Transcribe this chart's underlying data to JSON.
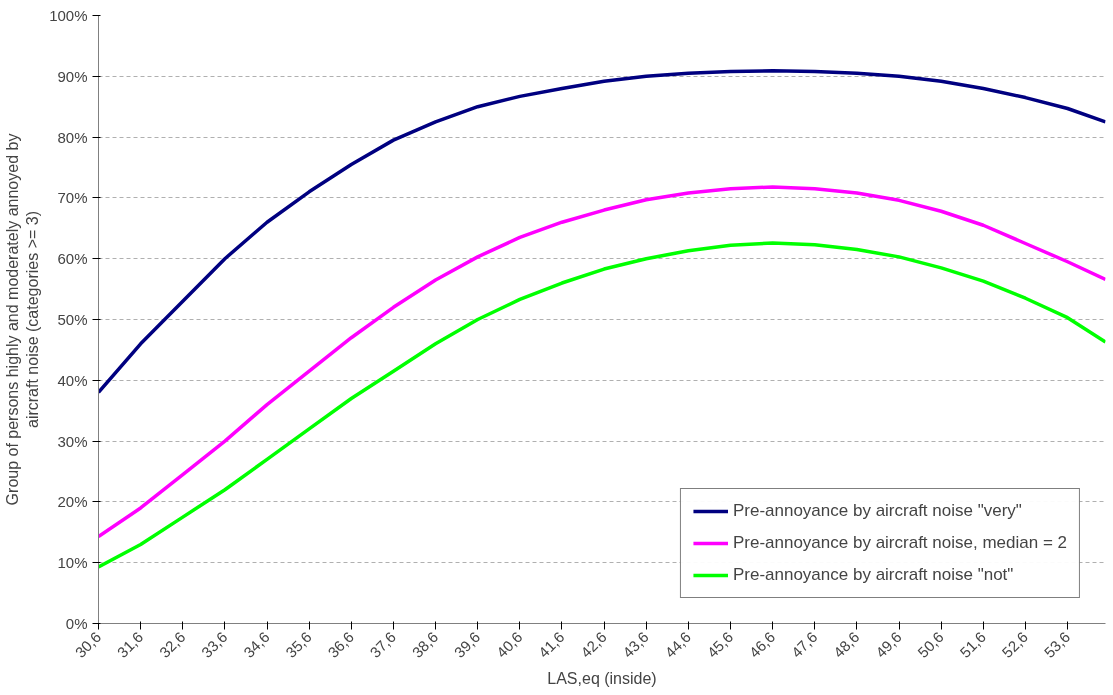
{
  "chart_data": {
    "type": "line",
    "xlabel": "LAS,eq (inside)",
    "ylabel": "Group of persons highly and moderately annoyed by\naircraft noise (categories >= 3)",
    "x": [
      30.6,
      31.6,
      32.6,
      33.6,
      34.6,
      35.6,
      36.6,
      37.6,
      38.6,
      39.6,
      40.6,
      41.6,
      42.6,
      43.6,
      44.6,
      45.6,
      46.6,
      47.6,
      48.6,
      49.6,
      50.6,
      51.6,
      52.6,
      53.6,
      54.5
    ],
    "series": [
      {
        "name": "Pre-annoyance by aircraft noise \"very\"",
        "color": "#000080",
        "values": [
          38,
          46,
          53,
          60,
          66,
          71,
          75.5,
          79.5,
          82.5,
          85,
          86.7,
          88,
          89.2,
          90,
          90.5,
          90.8,
          90.9,
          90.8,
          90.5,
          90,
          89.2,
          88,
          86.5,
          84.7,
          82.5
        ]
      },
      {
        "name": "Pre-annoyance by aircraft noise, median = 2",
        "color": "#ff00ff",
        "values": [
          14.3,
          19,
          24.5,
          30,
          36,
          41.5,
          47,
          52,
          56.5,
          60.3,
          63.5,
          66,
          68,
          69.7,
          70.8,
          71.5,
          71.8,
          71.5,
          70.8,
          69.6,
          67.8,
          65.5,
          62.5,
          59.5,
          56.6
        ]
      },
      {
        "name": "Pre-annoyance by aircraft noise \"not\"",
        "color": "#00ff00",
        "values": [
          9.3,
          13,
          17.5,
          22,
          27,
          32,
          37,
          41.5,
          46,
          50,
          53.3,
          56,
          58.3,
          60,
          61.3,
          62.2,
          62.6,
          62.3,
          61.5,
          60.3,
          58.5,
          56.3,
          53.5,
          50.3,
          46.3
        ]
      }
    ],
    "xlim": [
      30.6,
      54.5
    ],
    "xticks": [
      {
        "value": 30.6,
        "label": "30,6"
      },
      {
        "value": 31.6,
        "label": "31,6"
      },
      {
        "value": 32.6,
        "label": "32,6"
      },
      {
        "value": 33.6,
        "label": "33,6"
      },
      {
        "value": 34.6,
        "label": "34,6"
      },
      {
        "value": 35.6,
        "label": "35,6"
      },
      {
        "value": 36.6,
        "label": "36,6"
      },
      {
        "value": 37.6,
        "label": "37,6"
      },
      {
        "value": 38.6,
        "label": "38,6"
      },
      {
        "value": 39.6,
        "label": "39,6"
      },
      {
        "value": 40.6,
        "label": "40,6"
      },
      {
        "value": 41.6,
        "label": "41,6"
      },
      {
        "value": 42.6,
        "label": "42,6"
      },
      {
        "value": 43.6,
        "label": "43,6"
      },
      {
        "value": 44.6,
        "label": "44,6"
      },
      {
        "value": 45.6,
        "label": "45,6"
      },
      {
        "value": 46.6,
        "label": "46,6"
      },
      {
        "value": 47.6,
        "label": "47,6"
      },
      {
        "value": 48.6,
        "label": "48,6"
      },
      {
        "value": 49.6,
        "label": "49,6"
      },
      {
        "value": 50.6,
        "label": "50,6"
      },
      {
        "value": 51.6,
        "label": "51,6"
      },
      {
        "value": 52.6,
        "label": "52,6"
      },
      {
        "value": 53.6,
        "label": "53,6"
      }
    ],
    "ylim": [
      0,
      100
    ],
    "yticks": [
      {
        "value": 0,
        "label": "0%"
      },
      {
        "value": 10,
        "label": "10%"
      },
      {
        "value": 20,
        "label": "20%"
      },
      {
        "value": 30,
        "label": "30%"
      },
      {
        "value": 40,
        "label": "40%"
      },
      {
        "value": 50,
        "label": "50%"
      },
      {
        "value": 60,
        "label": "60%"
      },
      {
        "value": 70,
        "label": "70%"
      },
      {
        "value": 80,
        "label": "80%"
      },
      {
        "value": 90,
        "label": "90%"
      },
      {
        "value": 100,
        "label": "100%"
      }
    ],
    "grid": "y",
    "legend": "bottom right",
    "line_style": "solid",
    "marker": "none"
  }
}
